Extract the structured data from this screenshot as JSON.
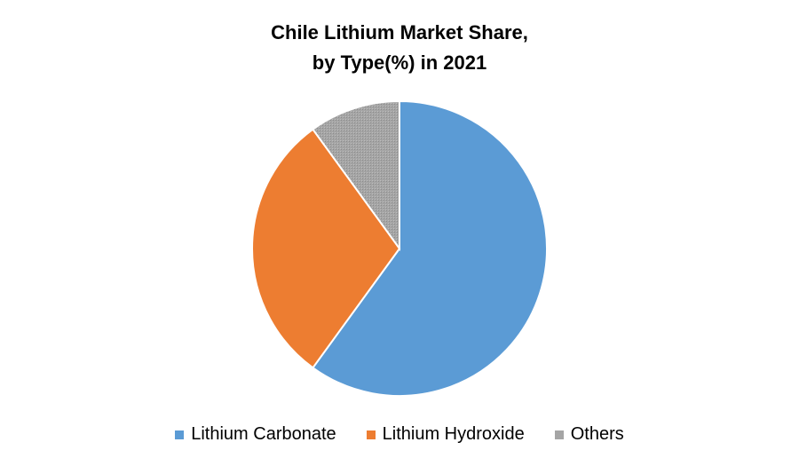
{
  "chart_data": {
    "type": "pie",
    "title_line1": "Chile Lithium Market Share,",
    "title_line2": "by Type(%) in 2021",
    "slices": [
      {
        "label": "Lithium Carbonate",
        "value": 60,
        "color": "#5B9BD5"
      },
      {
        "label": "Lithium Hydroxide",
        "value": 30,
        "color": "#ED7D31"
      },
      {
        "label": "Others",
        "value": 10,
        "color": "#A5A5A5"
      }
    ],
    "legend_position": "bottom",
    "start_angle": "12 o'clock",
    "direction": "clockwise"
  }
}
